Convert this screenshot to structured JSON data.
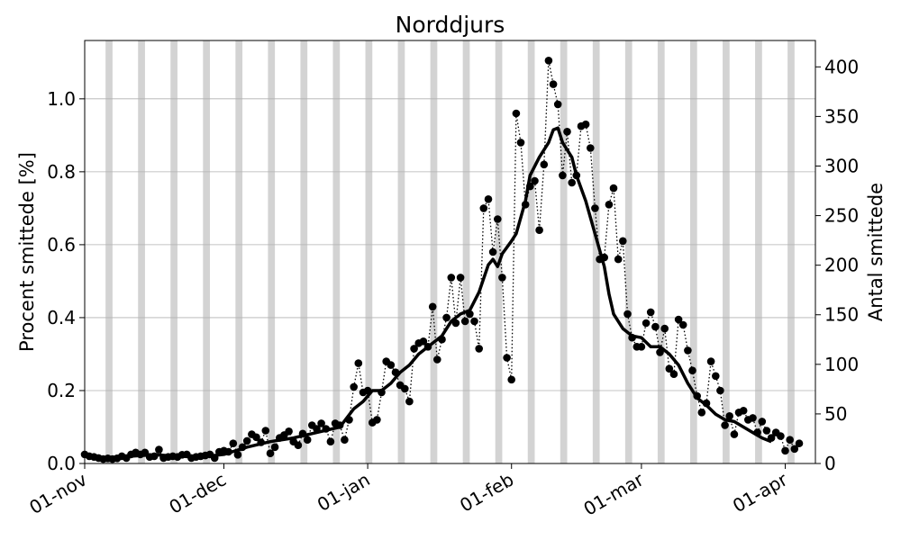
{
  "chart_data": {
    "type": "line",
    "title": "Norddjurs",
    "ylabel_left": "Procent smittede [%]",
    "ylabel_right": "Antal smittede",
    "x_start": "01-nov",
    "x_range_days": [
      0,
      157.5
    ],
    "ylim_left": [
      0,
      1.16
    ],
    "ylim_right": [
      0,
      426.6
    ],
    "x_ticks": [
      {
        "day": 0,
        "label": "01-nov"
      },
      {
        "day": 30,
        "label": "01-dec"
      },
      {
        "day": 61,
        "label": "01-jan"
      },
      {
        "day": 92,
        "label": "01-feb"
      },
      {
        "day": 120,
        "label": "01-mar"
      },
      {
        "day": 151,
        "label": "01-apr"
      }
    ],
    "y_ticks_left": [
      {
        "value": 0.0,
        "label": "0.0"
      },
      {
        "value": 0.2,
        "label": "0.2"
      },
      {
        "value": 0.4,
        "label": "0.4"
      },
      {
        "value": 0.6,
        "label": "0.6"
      },
      {
        "value": 0.8,
        "label": "0.8"
      },
      {
        "value": 1.0,
        "label": "1.0"
      }
    ],
    "y_ticks_right": [
      {
        "value": 0,
        "label": "0"
      },
      {
        "value": 50,
        "label": "50"
      },
      {
        "value": 100,
        "label": "100"
      },
      {
        "value": 150,
        "label": "150"
      },
      {
        "value": 200,
        "label": "200"
      },
      {
        "value": 250,
        "label": "250"
      },
      {
        "value": 300,
        "label": "300"
      },
      {
        "value": 350,
        "label": "350"
      },
      {
        "value": 400,
        "label": "400"
      }
    ],
    "grid": "horizontal",
    "weekend_shading_days": [
      4.5,
      11.5,
      18.5,
      25.5,
      32.5,
      39.5,
      46.5,
      53.5,
      60.5,
      67.5,
      74.5,
      81.5,
      88.5,
      95.5,
      102.5,
      109.5,
      116.5,
      123.5,
      130.5,
      137.5,
      144.5,
      151.5,
      158.5
    ],
    "series": [
      {
        "style": "dotted-markers",
        "values": [
          0.025,
          0.02,
          0.018,
          0.015,
          0.012,
          0.014,
          0.012,
          0.014,
          0.02,
          0.015,
          0.025,
          0.03,
          0.025,
          0.03,
          0.018,
          0.02,
          0.038,
          0.015,
          0.018,
          0.02,
          0.018,
          0.024,
          0.025,
          0.015,
          0.018,
          0.02,
          0.022,
          0.025,
          0.015,
          0.032,
          0.035,
          0.032,
          0.055,
          0.024,
          0.045,
          0.062,
          0.08,
          0.072,
          0.058,
          0.09,
          0.028,
          0.045,
          0.07,
          0.078,
          0.088,
          0.06,
          0.05,
          0.082,
          0.065,
          0.105,
          0.095,
          0.11,
          0.095,
          0.06,
          0.11,
          0.105,
          0.065,
          0.12,
          0.21,
          0.275,
          0.195,
          0.2,
          0.112,
          0.12,
          0.195,
          0.28,
          0.27,
          0.25,
          0.215,
          0.205,
          0.17,
          0.315,
          0.33,
          0.335,
          0.32,
          0.43,
          0.285,
          0.34,
          0.4,
          0.51,
          0.385,
          0.51,
          0.39,
          0.41,
          0.39,
          0.315,
          0.7,
          0.725,
          0.58,
          0.67,
          0.51,
          0.29,
          0.23,
          0.96,
          0.88,
          0.71,
          0.76,
          0.775,
          0.64,
          0.82,
          1.105,
          1.04,
          0.985,
          0.79,
          0.91,
          0.77,
          0.79,
          0.925,
          0.93,
          0.865,
          0.7,
          0.56,
          0.565,
          0.71,
          0.755,
          0.56,
          0.61,
          0.41,
          0.345,
          0.32,
          0.32,
          0.385,
          0.415,
          0.375,
          0.305,
          0.37,
          0.26,
          0.245,
          0.395,
          0.38,
          0.31,
          0.255,
          0.185,
          0.14,
          0.165,
          0.28,
          0.24,
          0.2,
          0.105,
          0.13,
          0.08,
          0.14,
          0.145,
          0.12,
          0.125,
          0.085,
          0.115,
          0.09,
          0.07,
          0.085,
          0.075,
          0.035,
          0.065,
          0.04,
          0.055
        ]
      },
      {
        "style": "solid-thick",
        "points": [
          [
            0,
            0.02
          ],
          [
            5,
            0.016
          ],
          [
            10,
            0.02
          ],
          [
            15,
            0.024
          ],
          [
            20,
            0.02
          ],
          [
            25,
            0.018
          ],
          [
            30,
            0.025
          ],
          [
            35,
            0.045
          ],
          [
            40,
            0.06
          ],
          [
            45,
            0.07
          ],
          [
            50,
            0.085
          ],
          [
            55,
            0.1
          ],
          [
            58,
            0.15
          ],
          [
            60,
            0.17
          ],
          [
            62,
            0.2
          ],
          [
            64,
            0.2
          ],
          [
            66,
            0.22
          ],
          [
            68,
            0.25
          ],
          [
            70,
            0.27
          ],
          [
            72,
            0.3
          ],
          [
            75,
            0.33
          ],
          [
            77,
            0.35
          ],
          [
            79,
            0.39
          ],
          [
            81,
            0.41
          ],
          [
            83,
            0.42
          ],
          [
            85,
            0.47
          ],
          [
            87,
            0.545
          ],
          [
            88,
            0.56
          ],
          [
            89,
            0.54
          ],
          [
            90,
            0.575
          ],
          [
            92,
            0.61
          ],
          [
            93,
            0.63
          ],
          [
            95,
            0.72
          ],
          [
            96,
            0.79
          ],
          [
            98,
            0.84
          ],
          [
            100,
            0.88
          ],
          [
            101,
            0.915
          ],
          [
            102,
            0.92
          ],
          [
            103,
            0.88
          ],
          [
            105,
            0.84
          ],
          [
            106,
            0.79
          ],
          [
            108,
            0.72
          ],
          [
            110,
            0.63
          ],
          [
            112,
            0.54
          ],
          [
            113,
            0.465
          ],
          [
            114,
            0.41
          ],
          [
            116,
            0.37
          ],
          [
            118,
            0.35
          ],
          [
            120,
            0.345
          ],
          [
            122,
            0.32
          ],
          [
            124,
            0.32
          ],
          [
            126,
            0.3
          ],
          [
            128,
            0.27
          ],
          [
            130,
            0.22
          ],
          [
            132,
            0.18
          ],
          [
            134,
            0.16
          ],
          [
            136,
            0.135
          ],
          [
            138,
            0.12
          ],
          [
            140,
            0.115
          ],
          [
            142,
            0.1
          ],
          [
            144,
            0.085
          ],
          [
            146,
            0.07
          ],
          [
            148,
            0.06
          ]
        ]
      }
    ]
  }
}
